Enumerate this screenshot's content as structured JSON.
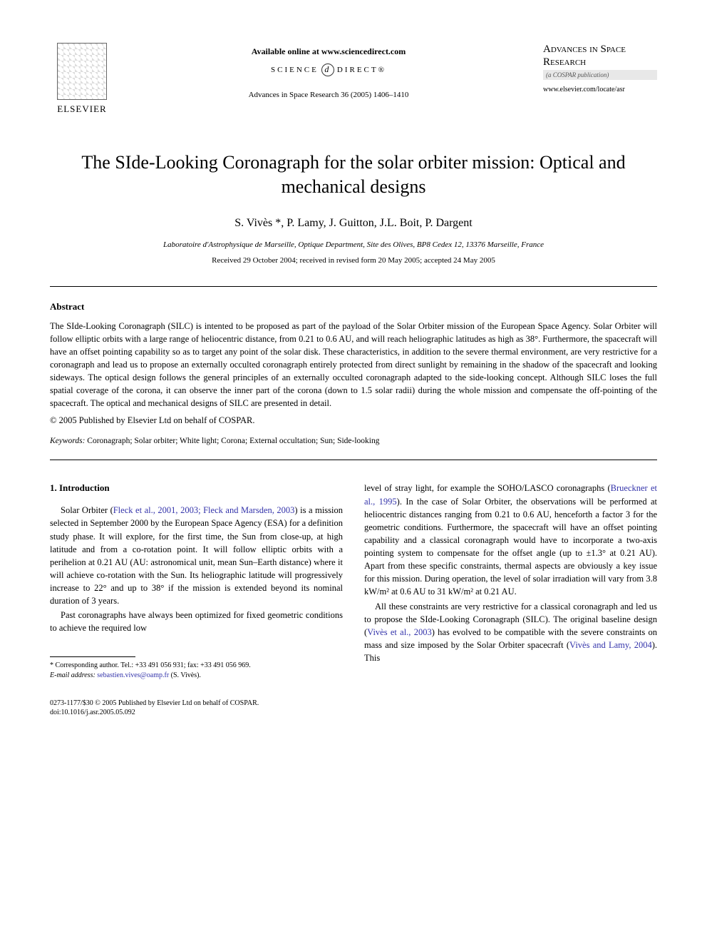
{
  "header": {
    "publisher_name": "ELSEVIER",
    "available_online": "Available online at www.sciencedirect.com",
    "sciencedirect_left": "SCIENCE",
    "sciencedirect_right": "DIRECT®",
    "citation": "Advances in Space Research 36 (2005) 1406–1410",
    "journal_title": "Advances in Space Research",
    "journal_subtitle": "(a COSPAR publication)",
    "journal_url": "www.elsevier.com/locate/asr"
  },
  "article": {
    "title": "The SIde-Looking Coronagraph for the solar orbiter mission: Optical and mechanical designs",
    "authors": "S. Vivès *, P. Lamy, J. Guitton, J.L. Boit, P. Dargent",
    "affiliation": "Laboratoire d'Astrophysique de Marseille, Optique Department, Site des Olives, BP8 Cedex 12, 13376 Marseille, France",
    "dates": "Received 29 October 2004; received in revised form 20 May 2005; accepted 24 May 2005"
  },
  "abstract": {
    "heading": "Abstract",
    "text": "The SIde-Looking Coronagraph (SILC) is intented to be proposed as part of the payload of the Solar Orbiter mission of the European Space Agency. Solar Orbiter will follow elliptic orbits with a large range of heliocentric distance, from 0.21 to 0.6 AU, and will reach heliographic latitudes as high as 38°. Furthermore, the spacecraft will have an offset pointing capability so as to target any point of the solar disk. These characteristics, in addition to the severe thermal environment, are very restrictive for a coronagraph and lead us to propose an externally occulted coronagraph entirely protected from direct sunlight by remaining in the shadow of the spacecraft and looking sideways. The optical design follows the general principles of an externally occulted coronagraph adapted to the side-looking concept. Although SILC loses the full spatial coverage of the corona, it can observe the inner part of the corona (down to 1.5 solar radii) during the whole mission and compensate the off-pointing of the spacecraft. The optical and mechanical designs of SILC are presented in detail.",
    "copyright": "© 2005 Published by Elsevier Ltd on behalf of COSPAR."
  },
  "keywords": {
    "label": "Keywords:",
    "text": " Coronagraph; Solar orbiter; White light; Corona; External occultation; Sun; Side-looking"
  },
  "section1": {
    "heading": "1. Introduction",
    "para1_pre": "Solar Orbiter (",
    "para1_ref": "Fleck et al., 2001, 2003; Fleck and Marsden, 2003",
    "para1_post": ") is a mission selected in September 2000 by the European Space Agency (ESA) for a definition study phase. It will explore, for the first time, the Sun from close-up, at high latitude and from a co-rotation point. It will follow elliptic orbits with a perihelion at 0.21 AU (AU: astronomical unit, mean Sun–Earth distance) where it will achieve co-rotation with the Sun. Its heliographic latitude will progressively increase to 22° and up to 38° if the mission is extended beyond its nominal duration of 3 years.",
    "para2": "Past coronagraphs have always been optimized for fixed geometric conditions to achieve the required low",
    "col2_pre": "level of stray light, for example the SOHO/LASCO coronagraphs (",
    "col2_ref1": "Brueckner et al., 1995",
    "col2_mid1": "). In the case of Solar Orbiter, the observations will be performed at heliocentric distances ranging from 0.21 to 0.6 AU, henceforth a factor 3 for the geometric conditions. Furthermore, the spacecraft will have an offset pointing capability and a classical coronagraph would have to incorporate a two-axis pointing system to compensate for the offset angle (up to ±1.3° at 0.21 AU). Apart from these specific constraints, thermal aspects are obviously a key issue for this mission. During operation, the level of solar irradiation will vary from 3.8 kW/m² at 0.6 AU to 31 kW/m² at 0.21 AU.",
    "col2_para2_pre": "All these constraints are very restrictive for a classical coronagraph and led us to propose the SIde-Looking Coronagraph (SILC). The original baseline design (",
    "col2_ref2": "Vivès et al., 2003",
    "col2_mid2": ") has evolved to be compatible with the severe constraints on mass and size imposed by the Solar Orbiter spacecraft (",
    "col2_ref3": "Vivès and Lamy, 2004",
    "col2_post": "). This"
  },
  "footnote": {
    "line1": "* Corresponding author. Tel.: +33 491 056 931; fax: +33 491 056 969.",
    "line2_label": "E-mail address:",
    "line2_email": "sebastien.vives@oamp.fr",
    "line2_post": " (S. Vivès)."
  },
  "footer": {
    "line1": "0273-1177/$30 © 2005 Published by Elsevier Ltd on behalf of COSPAR.",
    "line2": "doi:10.1016/j.asr.2005.05.092"
  }
}
